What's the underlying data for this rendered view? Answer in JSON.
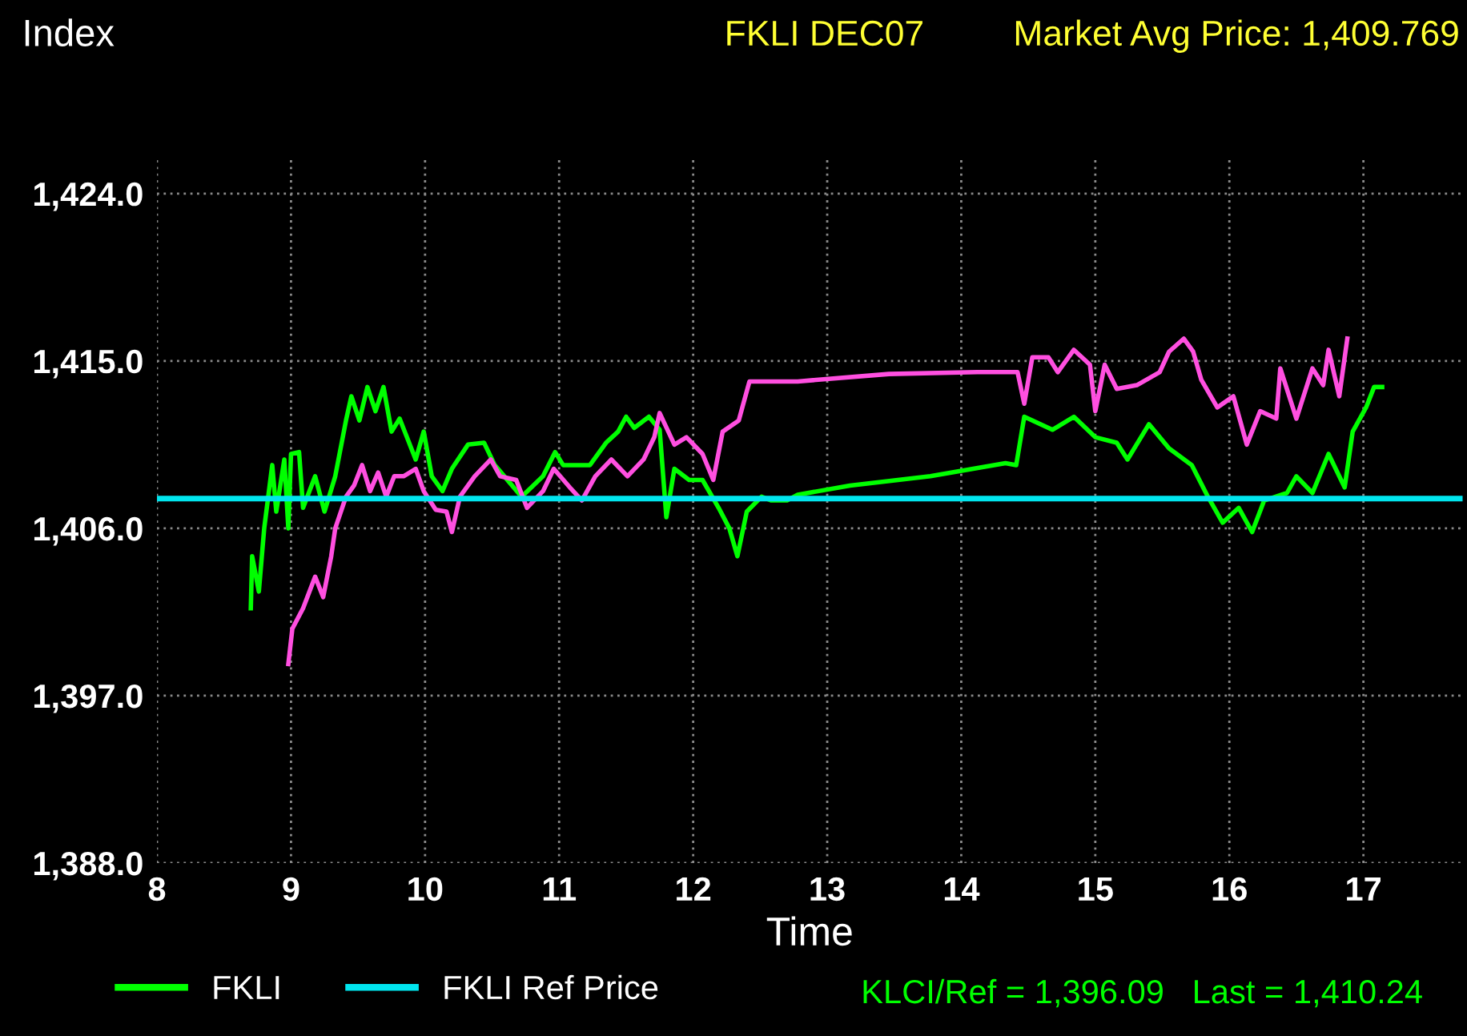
{
  "chart_data": {
    "type": "line",
    "title": "FKLI DEC07",
    "subtitle": "Market Avg Price: 1,409.769",
    "ylabel": "Index",
    "xlabel": "Time",
    "xlim": [
      8,
      17.74
    ],
    "xticks": [
      8,
      9,
      10,
      11,
      12,
      13,
      14,
      15,
      16,
      17
    ],
    "ylim": [
      1388,
      1426
    ],
    "yticks": [
      {
        "value": 1388,
        "label": "1,388.0"
      },
      {
        "value": 1397,
        "label": "1,397.0"
      },
      {
        "value": 1406,
        "label": "1,406.0"
      },
      {
        "value": 1415,
        "label": "1,415.0"
      },
      {
        "value": 1424,
        "label": "1,424.0"
      }
    ],
    "grid": true,
    "legend": "bottom",
    "line_style": "solid",
    "marker": "none",
    "series": [
      {
        "name": "FKLI",
        "color": "#00ff00",
        "x": [
          8.7,
          8.71,
          8.76,
          8.8,
          8.86,
          8.89,
          8.95,
          8.98,
          9.0,
          9.06,
          9.09,
          9.18,
          9.25,
          9.33,
          9.41,
          9.45,
          9.51,
          9.57,
          9.63,
          9.69,
          9.75,
          9.81,
          9.93,
          9.99,
          10.05,
          10.13,
          10.2,
          10.32,
          10.44,
          10.52,
          10.72,
          10.88,
          10.97,
          11.03,
          11.23,
          11.35,
          11.44,
          11.5,
          11.56,
          11.67,
          11.75,
          11.8,
          11.86,
          11.97,
          12.07,
          12.19,
          12.27,
          12.33,
          12.4,
          12.51,
          12.58,
          12.7,
          12.78,
          13.17,
          13.77,
          14.33,
          14.41,
          14.47,
          14.68,
          14.84,
          15.0,
          15.16,
          15.24,
          15.4,
          15.55,
          15.72,
          15.84,
          15.95,
          16.07,
          16.17,
          16.26,
          16.43,
          16.5,
          16.62,
          16.74,
          16.86,
          16.92,
          17.02,
          17.08,
          17.14
        ],
        "values": [
          1401.7,
          1404.5,
          1402.6,
          1406.0,
          1409.4,
          1406.9,
          1409.7,
          1406.0,
          1410.0,
          1410.1,
          1407.1,
          1408.8,
          1406.9,
          1408.8,
          1411.8,
          1413.1,
          1411.8,
          1413.6,
          1412.3,
          1413.6,
          1411.2,
          1411.9,
          1409.7,
          1411.2,
          1408.8,
          1408.0,
          1409.2,
          1410.5,
          1410.6,
          1409.4,
          1407.7,
          1408.8,
          1410.1,
          1409.4,
          1409.4,
          1410.6,
          1411.2,
          1412.0,
          1411.4,
          1412.0,
          1411.3,
          1406.6,
          1409.2,
          1408.6,
          1408.6,
          1407.1,
          1406.0,
          1404.5,
          1406.9,
          1407.7,
          1407.5,
          1407.5,
          1407.8,
          1408.3,
          1408.8,
          1409.5,
          1409.4,
          1412.0,
          1411.3,
          1412.0,
          1410.9,
          1410.6,
          1409.7,
          1411.6,
          1410.3,
          1409.4,
          1407.7,
          1406.3,
          1407.1,
          1405.8,
          1407.5,
          1407.9,
          1408.8,
          1407.9,
          1410.0,
          1408.2,
          1411.2,
          1412.5,
          1413.6,
          1413.6
        ]
      },
      {
        "color": "#ff4fe0",
        "x": [
          8.98,
          9.01,
          9.09,
          9.18,
          9.24,
          9.3,
          9.33,
          9.41,
          9.47,
          9.53,
          9.59,
          9.65,
          9.71,
          9.77,
          9.84,
          9.93,
          9.99,
          10.08,
          10.16,
          10.2,
          10.26,
          10.37,
          10.49,
          10.56,
          10.68,
          10.76,
          10.88,
          10.96,
          11.08,
          11.17,
          11.27,
          11.39,
          11.51,
          11.63,
          11.71,
          11.75,
          11.86,
          11.95,
          12.07,
          12.15,
          12.22,
          12.34,
          12.42,
          12.78,
          13.46,
          14.12,
          14.42,
          14.47,
          14.53,
          14.65,
          14.72,
          14.84,
          14.96,
          15.0,
          15.07,
          15.16,
          15.31,
          15.48,
          15.55,
          15.66,
          15.73,
          15.79,
          15.91,
          16.03,
          16.13,
          16.23,
          16.35,
          16.38,
          16.5,
          16.62,
          16.7,
          16.74,
          16.82,
          16.88
        ],
        "values": [
          1398.7,
          1400.6,
          1401.7,
          1403.4,
          1402.3,
          1404.5,
          1406.0,
          1407.7,
          1408.3,
          1409.4,
          1408.0,
          1409.0,
          1407.7,
          1408.8,
          1408.8,
          1409.2,
          1408.0,
          1407.0,
          1406.9,
          1405.8,
          1407.7,
          1408.8,
          1409.7,
          1408.8,
          1408.6,
          1407.1,
          1408.0,
          1409.2,
          1408.2,
          1407.5,
          1408.8,
          1409.7,
          1408.8,
          1409.7,
          1410.9,
          1412.2,
          1410.5,
          1410.9,
          1410.0,
          1408.6,
          1411.2,
          1411.8,
          1413.9,
          1413.9,
          1414.3,
          1414.4,
          1414.4,
          1412.7,
          1415.2,
          1415.2,
          1414.4,
          1415.6,
          1414.8,
          1412.3,
          1414.8,
          1413.5,
          1413.7,
          1414.4,
          1415.5,
          1416.2,
          1415.5,
          1414.0,
          1412.5,
          1413.1,
          1410.5,
          1412.3,
          1411.9,
          1414.6,
          1411.9,
          1414.6,
          1413.7,
          1415.6,
          1413.1,
          1416.2
        ]
      }
    ],
    "ref_lines": [
      {
        "axis": "y",
        "value": 1407.6,
        "label": "FKLI Ref Price",
        "color": "#00e5ee",
        "line_style": "solid"
      }
    ],
    "annotations": [
      "KLCI/Ref = 1,396.09   Last = 1,410.24"
    ]
  }
}
